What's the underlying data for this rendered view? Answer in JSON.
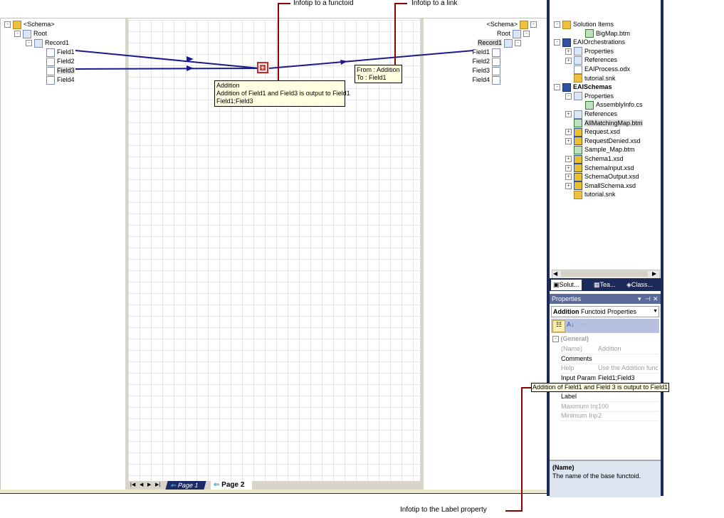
{
  "annotations": {
    "functoid": "Infotip to a functoid",
    "link": "Infotip to a link",
    "label": "Infotip to the Label property"
  },
  "source_tree": [
    {
      "label": "<Schema>",
      "icon": "folder-icon"
    },
    {
      "label": "Root",
      "icon": "record-icon"
    },
    {
      "label": "Record1",
      "icon": "record-icon"
    },
    {
      "label": "Field1",
      "icon": "field-icon"
    },
    {
      "label": "Field2",
      "icon": "field-icon"
    },
    {
      "label": "Field3",
      "icon": "field-icon"
    },
    {
      "label": "Field4",
      "icon": "field-icon"
    }
  ],
  "dest_tree": [
    {
      "label": "<Schema>"
    },
    {
      "label": "Root"
    },
    {
      "label": "Record1"
    },
    {
      "label": "Field1"
    },
    {
      "label": "Field2"
    },
    {
      "label": "Field3"
    },
    {
      "label": "Field4"
    }
  ],
  "functoid_tip": {
    "line1": "Addition",
    "line2": "Addition of Field1 and Field3 is output to Field1",
    "line3": "Field1;Field3"
  },
  "link_tip": {
    "line1": "From : Addition",
    "line2": "To : Field1"
  },
  "page_tabs": [
    "Page 1",
    "Page 2"
  ],
  "active_page": "Page 2",
  "solution": [
    {
      "label": "Solution Items",
      "indent": 0,
      "exp": "-",
      "icon": "folder"
    },
    {
      "label": "BigMap.btm",
      "indent": 2,
      "exp": "",
      "icon": "map"
    },
    {
      "label": "EAIOrchestrations",
      "indent": 0,
      "exp": "-",
      "icon": "proj"
    },
    {
      "label": "Properties",
      "indent": 1,
      "exp": "+",
      "icon": "doc"
    },
    {
      "label": "References",
      "indent": 1,
      "exp": "+",
      "icon": "doc"
    },
    {
      "label": "EAIProcess.odx",
      "indent": 1,
      "exp": "",
      "icon": "fld"
    },
    {
      "label": "tutorial.snk",
      "indent": 1,
      "exp": "",
      "icon": "folder"
    },
    {
      "label": "EAISchemas",
      "indent": 0,
      "exp": "-",
      "icon": "proj",
      "bold": true
    },
    {
      "label": "Properties",
      "indent": 1,
      "exp": "-",
      "icon": "doc"
    },
    {
      "label": "AssemblyInfo.cs",
      "indent": 2,
      "exp": "",
      "icon": "map"
    },
    {
      "label": "References",
      "indent": 1,
      "exp": "+",
      "icon": "doc"
    },
    {
      "label": "AllMatchingMap.btm",
      "indent": 1,
      "exp": "",
      "icon": "map",
      "selected": true
    },
    {
      "label": "Request.xsd",
      "indent": 1,
      "exp": "+",
      "icon": "xsd"
    },
    {
      "label": "RequestDenied.xsd",
      "indent": 1,
      "exp": "+",
      "icon": "xsd"
    },
    {
      "label": "Sample_Map.btm",
      "indent": 1,
      "exp": "",
      "icon": "map"
    },
    {
      "label": "Schema1.xsd",
      "indent": 1,
      "exp": "+",
      "icon": "xsd"
    },
    {
      "label": "SchemaInput.xsd",
      "indent": 1,
      "exp": "+",
      "icon": "xsd"
    },
    {
      "label": "SchemaOutput.xsd",
      "indent": 1,
      "exp": "+",
      "icon": "xsd"
    },
    {
      "label": "SmallSchema.xsd",
      "indent": 1,
      "exp": "+",
      "icon": "xsd"
    },
    {
      "label": "tutorial.snk",
      "indent": 1,
      "exp": "",
      "icon": "folder"
    }
  ],
  "explorer_tabs": [
    "Solut...",
    "Tea...",
    "Class..."
  ],
  "properties": {
    "title": "Properties",
    "object_name": "Addition",
    "object_type": "Functoid Properties",
    "category": "(General)",
    "rows": [
      {
        "name": "(Name)",
        "value": "Addition",
        "gray": true
      },
      {
        "name": "Comments",
        "value": "",
        "gray": false
      },
      {
        "name": "Help",
        "value": "Use the Addition funct",
        "gray": true
      },
      {
        "name": "Input Param",
        "value": "Field1;Field3",
        "gray": false
      },
      {
        "name": "Label",
        "value": "",
        "gray": false
      },
      {
        "name": "Maximum Inp",
        "value": "100",
        "gray": true
      },
      {
        "name": "Minimum Inp",
        "value": "2",
        "gray": true
      }
    ],
    "label_tip": "Addition of Field1 and Field 3 is output to Field1",
    "desc_title": "(Name)",
    "desc_text": "The name of the base functoid."
  },
  "colors": {
    "link": "#1a1a8c",
    "callout": "#8b0000",
    "frame": "#1c2a5a",
    "functoid": "#e02020"
  }
}
